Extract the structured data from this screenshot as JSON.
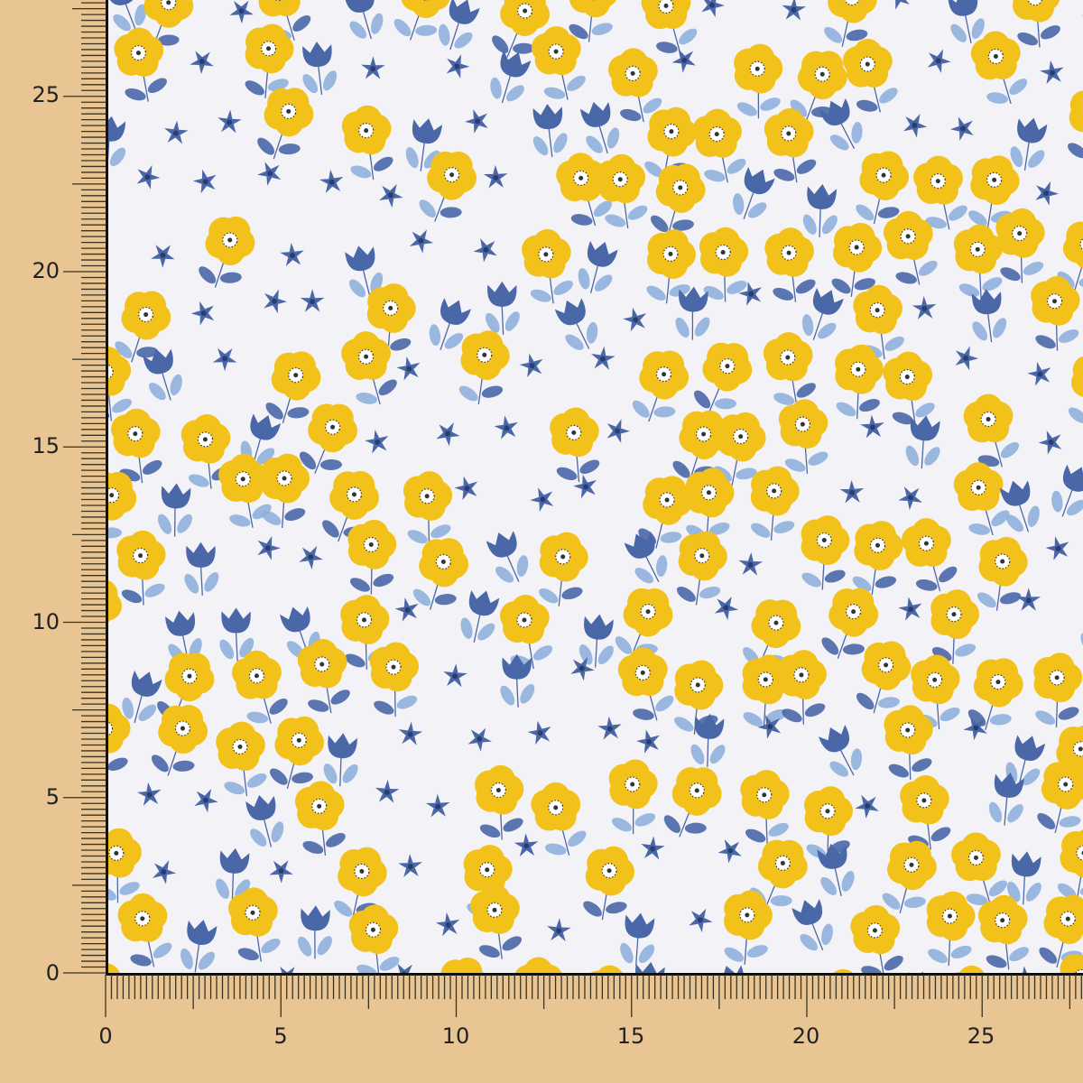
{
  "ruler": {
    "x_labels": [
      "0",
      "5",
      "10",
      "15",
      "20",
      "25"
    ],
    "y_labels": [
      "0",
      "5",
      "10",
      "15",
      "20",
      "25"
    ]
  },
  "colors": {
    "background": "#e8c593",
    "fabric": "#f3f2f7",
    "yellow_flower": "#f2c21b",
    "dark_blue": "#4a67a8",
    "light_blue": "#8fb0dc"
  },
  "motifs": [
    "yellow-flower-icon",
    "blue-tulip-icon",
    "blue-star-flower-icon",
    "leaf-icon"
  ]
}
